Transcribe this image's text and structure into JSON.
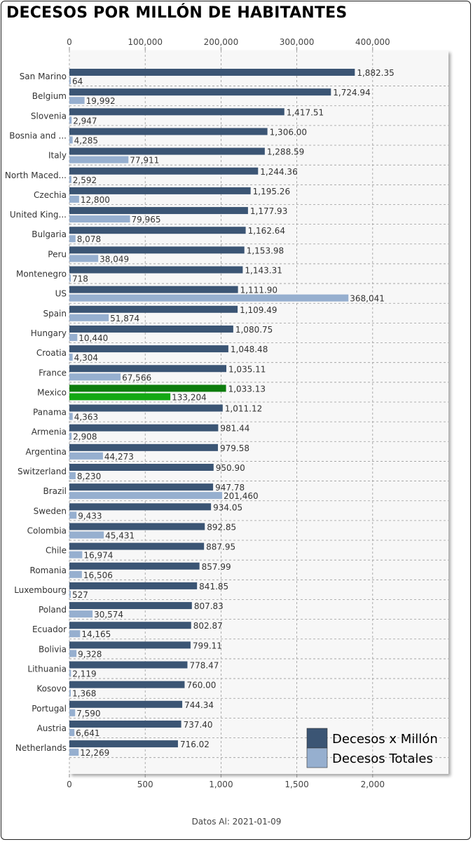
{
  "title": "DECESOS POR MILLÓN DE HABITANTES",
  "footer": "Datos Al: 2021-01-09",
  "colors": {
    "per_million": "#3b5574",
    "total": "#96afcf",
    "highlight_per_million": "#0d7c0d",
    "highlight_total": "#13a813",
    "plot_background": "#f7f7f7",
    "grid": "#9a9a9a"
  },
  "chart_data": {
    "type": "bar",
    "orientation": "horizontal",
    "title": "DECESOS POR MILLÓN DE HABITANTES",
    "highlight": "Mexico",
    "categories": [
      "San Marino",
      "Belgium",
      "Slovenia",
      "Bosnia and ...",
      "Italy",
      "North Maced...",
      "Czechia",
      "United King...",
      "Bulgaria",
      "Peru",
      "Montenegro",
      "US",
      "Spain",
      "Hungary",
      "Croatia",
      "France",
      "Mexico",
      "Panama",
      "Armenia",
      "Argentina",
      "Switzerland",
      "Brazil",
      "Sweden",
      "Colombia",
      "Chile",
      "Romania",
      "Luxembourg",
      "Poland",
      "Ecuador",
      "Bolivia",
      "Lithuania",
      "Kosovo",
      "Portugal",
      "Austria",
      "Netherlands"
    ],
    "series": [
      {
        "name": "Decesos x Millón",
        "axis": "bottom",
        "values": [
          1882.35,
          1724.94,
          1417.51,
          1306.0,
          1288.59,
          1244.36,
          1195.26,
          1177.93,
          1162.64,
          1153.98,
          1143.31,
          1111.9,
          1109.49,
          1080.75,
          1048.48,
          1035.11,
          1033.13,
          1011.12,
          981.44,
          979.58,
          950.9,
          947.78,
          934.05,
          892.85,
          887.95,
          857.99,
          841.85,
          807.83,
          802.87,
          799.11,
          778.47,
          760.0,
          744.34,
          737.4,
          716.02
        ],
        "labels": [
          "1,882.35",
          "1,724.94",
          "1,417.51",
          "1,306.00",
          "1,288.59",
          "1,244.36",
          "1,195.26",
          "1,177.93",
          "1,162.64",
          "1,153.98",
          "1,143.31",
          "1,111.90",
          "1,109.49",
          "1,080.75",
          "1,048.48",
          "1,035.11",
          "1,033.13",
          "1,011.12",
          "981.44",
          "979.58",
          "950.90",
          "947.78",
          "934.05",
          "892.85",
          "887.95",
          "857.99",
          "841.85",
          "807.83",
          "802.87",
          "799.11",
          "778.47",
          "760.00",
          "744.34",
          "737.40",
          "716.02"
        ]
      },
      {
        "name": "Decesos Totales",
        "axis": "top",
        "values": [
          64,
          19992,
          2947,
          4285,
          77911,
          2592,
          12800,
          79965,
          8078,
          38049,
          718,
          368041,
          51874,
          10440,
          4304,
          67566,
          133204,
          4363,
          2908,
          44273,
          8230,
          201460,
          9433,
          45431,
          16974,
          16506,
          527,
          30574,
          14165,
          9328,
          2119,
          1368,
          7590,
          6641,
          12269
        ],
        "labels": [
          "64",
          "19,992",
          "2,947",
          "4,285",
          "77,911",
          "2,592",
          "12,800",
          "79,965",
          "8,078",
          "38,049",
          "718",
          "368,041",
          "51,874",
          "10,440",
          "4,304",
          "67,566",
          "133,204",
          "4,363",
          "2,908",
          "44,273",
          "8,230",
          "201,460",
          "9,433",
          "45,431",
          "16,974",
          "16,506",
          "527",
          "30,574",
          "14,165",
          "9,328",
          "2,119",
          "1,368",
          "7,590",
          "6,641",
          "12,269"
        ]
      }
    ],
    "x_bottom": {
      "range": [
        0,
        2500
      ],
      "ticks": [
        0,
        500,
        1000,
        1500,
        2000
      ],
      "tick_labels": [
        "0",
        "500",
        "1,000",
        "1,500",
        "2,000"
      ]
    },
    "x_top": {
      "range": [
        0,
        500000
      ],
      "ticks": [
        0,
        100000,
        200000,
        300000,
        400000
      ],
      "tick_labels": [
        "0",
        "100,000",
        "200,000",
        "300,000",
        "400,000"
      ]
    },
    "grid": true,
    "legend_position": "bottom-right"
  }
}
